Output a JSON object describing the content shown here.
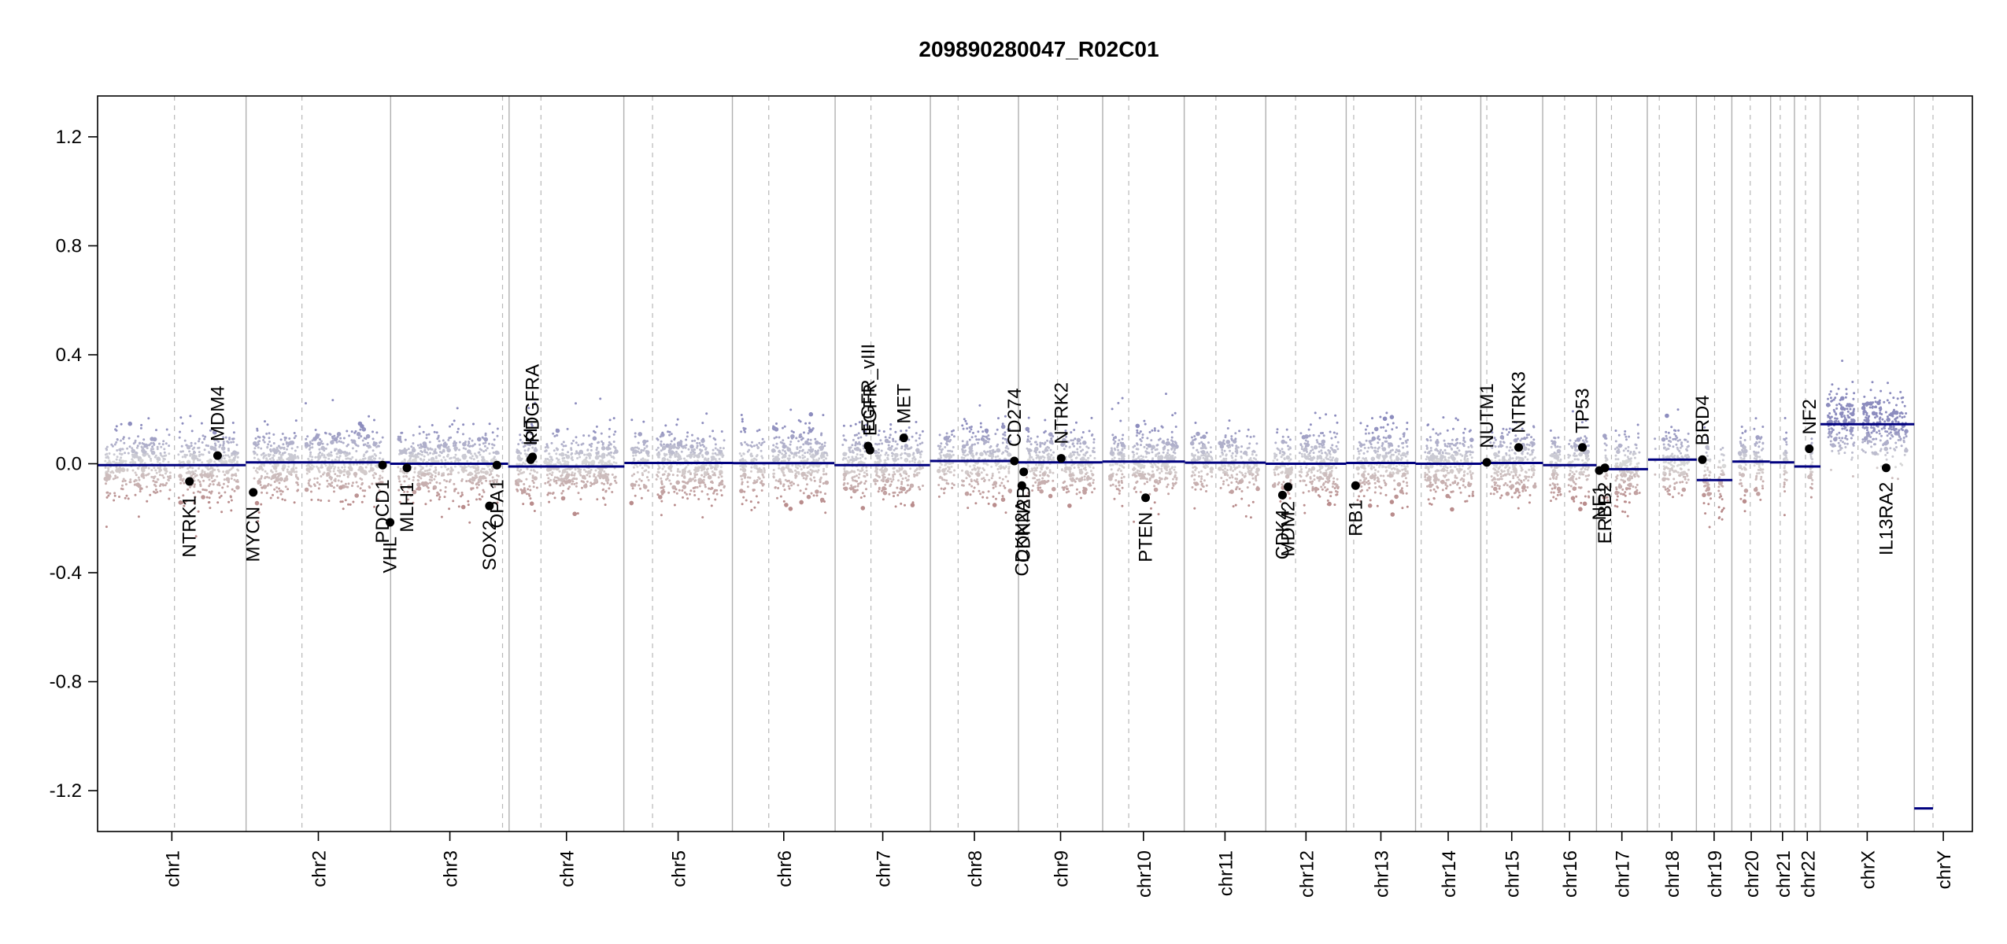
{
  "chart_data": {
    "type": "scatter",
    "title": "209890280047_R02C01",
    "xlabel": "",
    "ylabel": "",
    "ylim": [
      -1.35,
      1.35
    ],
    "yticks": [
      -1.2,
      -0.8,
      -0.4,
      0.0,
      0.4,
      0.8,
      1.2
    ],
    "ytick_labels": [
      "-1.2",
      "-0.8",
      "-0.4",
      "0.0",
      "0.4",
      "0.8",
      "1.2"
    ],
    "colors": {
      "gain": "#8c8cc0",
      "loss": "#b98c8c",
      "segment": "#00007f",
      "neutral": "#d0d0d0"
    },
    "chromosomes": [
      {
        "name": "chr1",
        "start": 0.0,
        "end": 0.0792,
        "cent": 0.041
      },
      {
        "name": "chr2",
        "start": 0.0792,
        "end": 0.1563,
        "cent": 0.109
      },
      {
        "name": "chr3",
        "start": 0.1563,
        "end": 0.2195,
        "cent": 0.216
      },
      {
        "name": "chr4",
        "start": 0.2195,
        "end": 0.2807,
        "cent": 0.2365
      },
      {
        "name": "chr5",
        "start": 0.2807,
        "end": 0.3386,
        "cent": 0.296
      },
      {
        "name": "chr6",
        "start": 0.3386,
        "end": 0.3934,
        "cent": 0.358
      },
      {
        "name": "chr7",
        "start": 0.3934,
        "end": 0.4442,
        "cent": 0.4125
      },
      {
        "name": "chr8",
        "start": 0.4442,
        "end": 0.4912,
        "cent": 0.459
      },
      {
        "name": "chr9",
        "start": 0.4912,
        "end": 0.5361,
        "cent": 0.512
      },
      {
        "name": "chr10",
        "start": 0.5361,
        "end": 0.5796,
        "cent": 0.55
      },
      {
        "name": "chr11",
        "start": 0.5796,
        "end": 0.6231,
        "cent": 0.5965
      },
      {
        "name": "chr12",
        "start": 0.6231,
        "end": 0.666,
        "cent": 0.639
      },
      {
        "name": "chr13",
        "start": 0.666,
        "end": 0.703,
        "cent": 0.67
      },
      {
        "name": "chr14",
        "start": 0.703,
        "end": 0.7378,
        "cent": 0.706
      },
      {
        "name": "chr15",
        "start": 0.7378,
        "end": 0.7708,
        "cent": 0.741
      },
      {
        "name": "chr16",
        "start": 0.7708,
        "end": 0.7995,
        "cent": 0.7825
      },
      {
        "name": "chr17",
        "start": 0.7995,
        "end": 0.8266,
        "cent": 0.8075
      },
      {
        "name": "chr18",
        "start": 0.8266,
        "end": 0.8528,
        "cent": 0.833
      },
      {
        "name": "chr19",
        "start": 0.8528,
        "end": 0.8717,
        "cent": 0.8625
      },
      {
        "name": "chr20",
        "start": 0.8717,
        "end": 0.8924,
        "cent": 0.8815
      },
      {
        "name": "chr21",
        "start": 0.8924,
        "end": 0.9051,
        "cent": 0.8975
      },
      {
        "name": "chr22",
        "start": 0.9051,
        "end": 0.9188,
        "cent": 0.911
      },
      {
        "name": "chrX",
        "start": 0.9188,
        "end": 0.969,
        "cent": 0.939
      },
      {
        "name": "chrY",
        "start": 0.969,
        "end": 1.0,
        "cent": 0.979
      }
    ],
    "segments": [
      {
        "x0": 0.0,
        "x1": 0.079,
        "y": -0.005
      },
      {
        "x0": 0.079,
        "x1": 0.156,
        "y": 0.005
      },
      {
        "x0": 0.156,
        "x1": 0.219,
        "y": 0.0
      },
      {
        "x0": 0.219,
        "x1": 0.281,
        "y": -0.01
      },
      {
        "x0": 0.281,
        "x1": 0.339,
        "y": 0.003
      },
      {
        "x0": 0.339,
        "x1": 0.393,
        "y": 0.002
      },
      {
        "x0": 0.393,
        "x1": 0.444,
        "y": -0.005
      },
      {
        "x0": 0.444,
        "x1": 0.491,
        "y": 0.01
      },
      {
        "x0": 0.491,
        "x1": 0.536,
        "y": 0.005
      },
      {
        "x0": 0.536,
        "x1": 0.58,
        "y": 0.008
      },
      {
        "x0": 0.58,
        "x1": 0.623,
        "y": 0.004
      },
      {
        "x0": 0.623,
        "x1": 0.666,
        "y": 0.0
      },
      {
        "x0": 0.666,
        "x1": 0.703,
        "y": 0.003
      },
      {
        "x0": 0.703,
        "x1": 0.738,
        "y": 0.0
      },
      {
        "x0": 0.738,
        "x1": 0.771,
        "y": 0.003
      },
      {
        "x0": 0.771,
        "x1": 0.7995,
        "y": -0.005
      },
      {
        "x0": 0.7995,
        "x1": 0.827,
        "y": -0.02
      },
      {
        "x0": 0.827,
        "x1": 0.853,
        "y": 0.015
      },
      {
        "x0": 0.853,
        "x1": 0.872,
        "y": -0.06
      },
      {
        "x0": 0.872,
        "x1": 0.892,
        "y": 0.008
      },
      {
        "x0": 0.892,
        "x1": 0.905,
        "y": 0.005
      },
      {
        "x0": 0.905,
        "x1": 0.919,
        "y": -0.01
      },
      {
        "x0": 0.919,
        "x1": 0.969,
        "y": 0.145
      },
      {
        "x0": 0.969,
        "x1": 0.979,
        "y": -1.265
      }
    ],
    "genes": [
      {
        "name": "NTRK1",
        "x": 0.049,
        "y": -0.065,
        "side": "below"
      },
      {
        "name": "MDM4",
        "x": 0.064,
        "y": 0.03,
        "side": "above"
      },
      {
        "name": "MYCN",
        "x": 0.083,
        "y": -0.105,
        "side": "below"
      },
      {
        "name": "PDCD1",
        "x": 0.152,
        "y": -0.005,
        "side": "below"
      },
      {
        "name": "VHL",
        "x": 0.156,
        "y": -0.215,
        "side": "below"
      },
      {
        "name": "MLH1",
        "x": 0.165,
        "y": -0.015,
        "side": "below"
      },
      {
        "name": "SOX2",
        "x": 0.209,
        "y": -0.155,
        "side": "below"
      },
      {
        "name": "OPA1",
        "x": 0.213,
        "y": -0.005,
        "side": "below"
      },
      {
        "name": "KIT",
        "x": 0.231,
        "y": 0.015,
        "side": "above"
      },
      {
        "name": "PDGFRA",
        "x": 0.232,
        "y": 0.025,
        "side": "above"
      },
      {
        "name": "EGFR_vIII",
        "x": 0.411,
        "y": 0.065,
        "side": "above"
      },
      {
        "name": "EGFR",
        "x": 0.412,
        "y": 0.05,
        "side": "above"
      },
      {
        "name": "MET",
        "x": 0.43,
        "y": 0.095,
        "side": "above"
      },
      {
        "name": "CD274",
        "x": 0.489,
        "y": 0.01,
        "side": "above"
      },
      {
        "name": "CDKN2A",
        "x": 0.493,
        "y": -0.08,
        "side": "below"
      },
      {
        "name": "CDKN2B",
        "x": 0.494,
        "y": -0.03,
        "side": "below"
      },
      {
        "name": "NTRK2",
        "x": 0.514,
        "y": 0.02,
        "side": "above"
      },
      {
        "name": "PTEN",
        "x": 0.559,
        "y": -0.125,
        "side": "below"
      },
      {
        "name": "CDK4",
        "x": 0.632,
        "y": -0.115,
        "side": "below"
      },
      {
        "name": "MDM2",
        "x": 0.635,
        "y": -0.085,
        "side": "below"
      },
      {
        "name": "RB1",
        "x": 0.671,
        "y": -0.08,
        "side": "below"
      },
      {
        "name": "NUTM1",
        "x": 0.741,
        "y": 0.005,
        "side": "above"
      },
      {
        "name": "NTRK3",
        "x": 0.758,
        "y": 0.06,
        "side": "above"
      },
      {
        "name": "TP53",
        "x": 0.792,
        "y": 0.06,
        "side": "above"
      },
      {
        "name": "NF1",
        "x": 0.801,
        "y": -0.025,
        "side": "below"
      },
      {
        "name": "ERBB2",
        "x": 0.804,
        "y": -0.015,
        "side": "below"
      },
      {
        "name": "BRD4",
        "x": 0.856,
        "y": 0.015,
        "side": "above"
      },
      {
        "name": "NF2",
        "x": 0.913,
        "y": 0.055,
        "side": "above"
      },
      {
        "name": "IL13RA2",
        "x": 0.954,
        "y": -0.015,
        "side": "below"
      }
    ]
  }
}
